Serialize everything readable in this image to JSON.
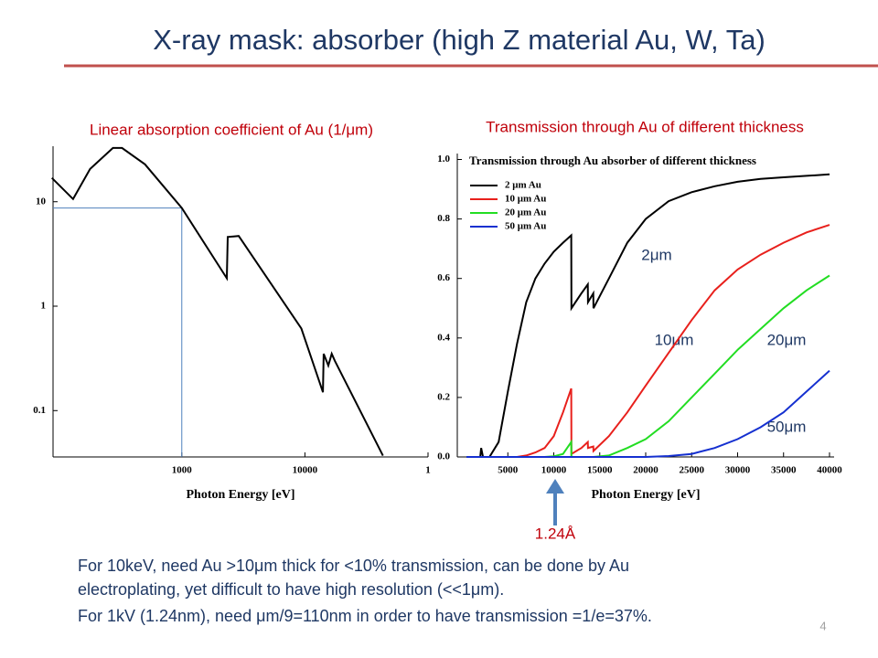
{
  "title": "X-ray mask: absorber (high Z material Au, W, Ta)",
  "chart_data": [
    {
      "type": "line",
      "title": "Linear absorption coefficient of Au (1/μm)",
      "xlabel": "Photon Energy [eV]",
      "xlog": true,
      "ylog": true,
      "xlim": [
        90,
        100000
      ],
      "ylim": [
        0.036,
        34
      ],
      "xticks": [
        1000,
        10000,
        {
          "value": 100000,
          "label": "1"
        }
      ],
      "yticks": [
        0.1,
        1,
        10
      ],
      "x": [
        88,
        131,
        180,
        276,
        327,
        502,
        1000,
        2320,
        2360,
        2900,
        9350,
        14000,
        14200,
        15500,
        16500,
        17500,
        43000
      ],
      "series": [
        {
          "color": "#000000",
          "values": [
            16.9,
            10.6,
            20.6,
            32.7,
            32.7,
            22.8,
            8.7,
            1.85,
            4.6,
            4.7,
            0.61,
            0.15,
            0.35,
            0.27,
            0.35,
            0.3,
            0.037
          ]
        }
      ],
      "guide": {
        "x": 1000,
        "y": 8.7,
        "color": "#4f81bd"
      }
    },
    {
      "type": "line",
      "title": "Transmission through Au of different thickness",
      "inner_title": "Transmission through Au absorber of different thickness",
      "xlabel": "Photon Energy [eV]",
      "xlim": [
        -500,
        40500
      ],
      "ylim": [
        0,
        1.02
      ],
      "xticks": [
        5000,
        10000,
        15000,
        20000,
        25000,
        30000,
        35000,
        40000
      ],
      "yticks": [
        {
          "value": 0,
          "label": "0.0"
        },
        0.2,
        0.4,
        0.6,
        0.8,
        {
          "value": 1,
          "label": "1.0"
        }
      ],
      "x": [
        500,
        2000,
        2100,
        2300,
        3000,
        4000,
        5000,
        6000,
        7000,
        8000,
        9000,
        10000,
        11000,
        11900,
        11920,
        13000,
        13700,
        13720,
        14300,
        14320,
        16000,
        18000,
        20000,
        22500,
        25000,
        27500,
        30000,
        32500,
        35000,
        37500,
        40000
      ],
      "series": [
        {
          "name": "2 μm Au",
          "color": "#000000",
          "values": [
            0,
            0,
            0.03,
            0,
            0,
            0.05,
            0.22,
            0.38,
            0.52,
            0.6,
            0.65,
            0.69,
            0.72,
            0.745,
            0.5,
            0.55,
            0.58,
            0.52,
            0.55,
            0.5,
            0.6,
            0.72,
            0.8,
            0.86,
            0.89,
            0.91,
            0.925,
            0.935,
            0.94,
            0.945,
            0.95
          ]
        },
        {
          "name": "10 μm Au",
          "color": "#e8201c",
          "values": [
            0,
            0,
            0,
            0,
            0,
            0,
            0,
            0,
            0.005,
            0.015,
            0.03,
            0.07,
            0.15,
            0.23,
            0.01,
            0.03,
            0.05,
            0.03,
            0.035,
            0.02,
            0.07,
            0.15,
            0.24,
            0.35,
            0.46,
            0.56,
            0.63,
            0.68,
            0.72,
            0.755,
            0.78
          ]
        },
        {
          "name": "20 μm Au",
          "color": "#22dd22",
          "values": [
            0,
            0,
            0,
            0,
            0,
            0,
            0,
            0,
            0,
            0,
            0,
            0.002,
            0.01,
            0.05,
            0,
            0,
            0,
            0,
            0,
            0,
            0.005,
            0.03,
            0.06,
            0.12,
            0.2,
            0.28,
            0.36,
            0.43,
            0.5,
            0.56,
            0.61
          ]
        },
        {
          "name": "50 μm Au",
          "color": "#1530d0",
          "values": [
            0,
            0,
            0,
            0,
            0,
            0,
            0,
            0,
            0,
            0,
            0,
            0,
            0,
            0,
            0,
            0,
            0,
            0,
            0,
            0,
            0,
            0,
            0,
            0.003,
            0.01,
            0.03,
            0.06,
            0.1,
            0.15,
            0.22,
            0.29
          ]
        }
      ],
      "annotations": [
        "2μm",
        "10μm",
        "20μm",
        "50μm"
      ],
      "marker_label": "1.24Å"
    }
  ],
  "body": [
    "For 10keV, need Au >10μm thick for <10% transmission, can be done by Au",
    "electroplating, yet difficult to have high resolution (<<1μm).",
    "For 1kV (1.24nm), need μm/9=110nm in order to have transmission =1/e=37%."
  ],
  "page_number": "4"
}
